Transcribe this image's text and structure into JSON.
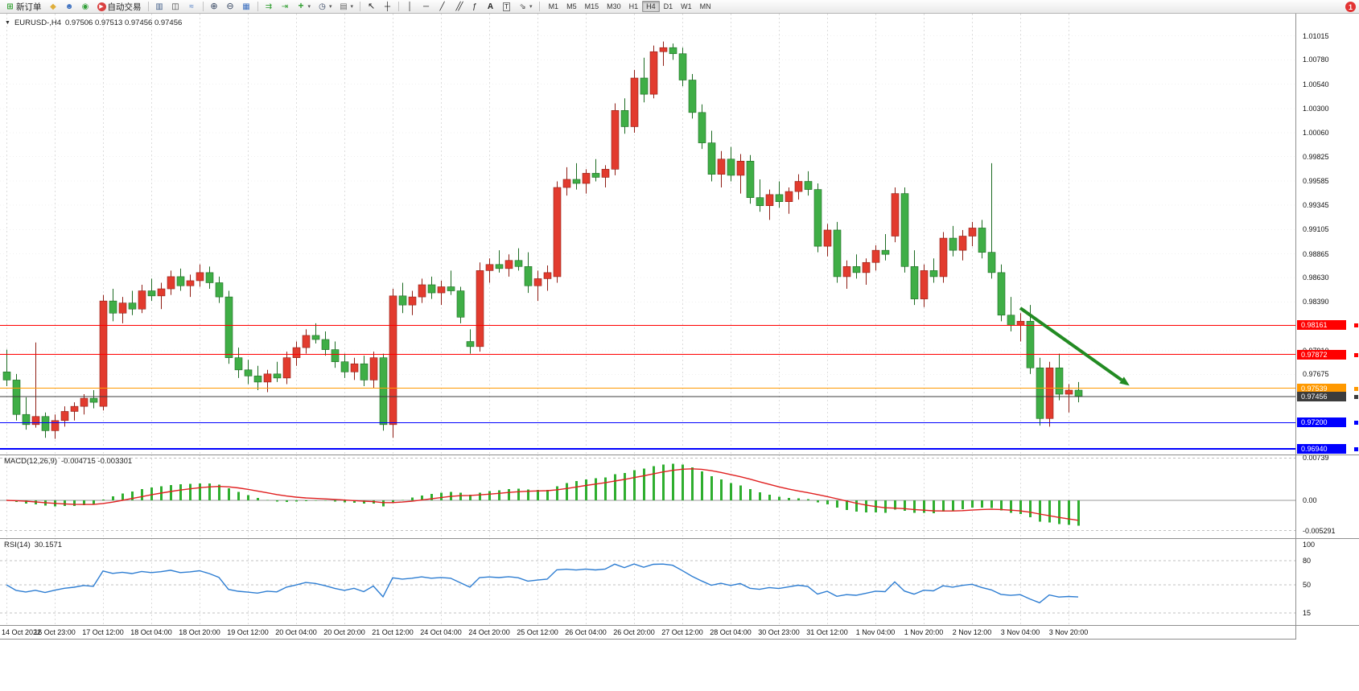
{
  "toolbar": {
    "new_order_label": "新订单",
    "autotrade_label": "自动交易",
    "timeframes": [
      "M1",
      "M5",
      "M15",
      "M30",
      "H1",
      "H4",
      "D1",
      "W1",
      "MN"
    ],
    "active_timeframe": "H4"
  },
  "badge": {
    "count": "1"
  },
  "chart": {
    "marker": "▼",
    "symbol_label": "EURUSD-,H4",
    "ohlc": "0.97506 0.97513 0.97456 0.97456"
  },
  "price_axis": {
    "ticks": [
      "1.01015",
      "1.00780",
      "1.00540",
      "1.00300",
      "1.00060",
      "0.99825",
      "0.99585",
      "0.99345",
      "0.99105",
      "0.98865",
      "0.98630",
      "0.98390",
      "0.97910",
      "0.97675"
    ],
    "tags": [
      {
        "label": "0.98161",
        "price": 0.98161,
        "color": "#ff0000"
      },
      {
        "label": "0.97872",
        "price": 0.97872,
        "color": "#ff0000"
      },
      {
        "label": "0.97539",
        "price": 0.97539,
        "color": "#ff9900"
      },
      {
        "label": "0.97456",
        "price": 0.97456,
        "color": "#3c3c3c"
      },
      {
        "label": "0.97200",
        "price": 0.972,
        "color": "#0000ff"
      },
      {
        "label": "0.96940",
        "price": 0.9694,
        "color": "#0000ff"
      }
    ]
  },
  "time_axis": {
    "labels": [
      "14 Oct 2022",
      "16 Oct 23:00",
      "17 Oct 12:00",
      "18 Oct 04:00",
      "18 Oct 20:00",
      "19 Oct 12:00",
      "20 Oct 04:00",
      "20 Oct 20:00",
      "21 Oct 12:00",
      "24 Oct 04:00",
      "24 Oct 20:00",
      "25 Oct 12:00",
      "26 Oct 04:00",
      "26 Oct 20:00",
      "27 Oct 12:00",
      "28 Oct 04:00",
      "30 Oct 23:00",
      "31 Oct 12:00",
      "1 Nov 04:00",
      "1 Nov 20:00",
      "2 Nov 12:00",
      "3 Nov 04:00",
      "3 Nov 20:00"
    ]
  },
  "macd": {
    "title": "MACD(12,26,9)",
    "values": "-0.004715 -0.003301",
    "axis": [
      "0.00739",
      "0.00",
      "-0.005291"
    ]
  },
  "rsi": {
    "title": "RSI(14)",
    "value": "30.1571",
    "axis": [
      "100",
      "80",
      "50",
      "15"
    ],
    "levels": [
      80,
      50,
      15
    ]
  },
  "chart_data": {
    "type": "candlestick",
    "symbol": "EURUSD-",
    "timeframe": "H4",
    "up_color": "#e23b2e",
    "up_border": "#8f1d14",
    "down_color": "#3fae46",
    "down_border": "#1c6b22",
    "candles": [
      [
        0.977,
        0.9792,
        0.9756,
        0.9762
      ],
      [
        0.9762,
        0.9768,
        0.9722,
        0.9728
      ],
      [
        0.9728,
        0.9745,
        0.9713,
        0.9718
      ],
      [
        0.9718,
        0.9799,
        0.9715,
        0.9726
      ],
      [
        0.9726,
        0.973,
        0.9705,
        0.9712
      ],
      [
        0.9712,
        0.9728,
        0.9704,
        0.9722
      ],
      [
        0.9722,
        0.9736,
        0.9716,
        0.9731
      ],
      [
        0.9731,
        0.974,
        0.9722,
        0.9736
      ],
      [
        0.9736,
        0.9748,
        0.9728,
        0.9744
      ],
      [
        0.9744,
        0.9752,
        0.9734,
        0.974
      ],
      [
        0.9736,
        0.9846,
        0.9732,
        0.984
      ],
      [
        0.984,
        0.9852,
        0.982,
        0.9828
      ],
      [
        0.9828,
        0.9844,
        0.9818,
        0.9838
      ],
      [
        0.9838,
        0.985,
        0.9826,
        0.9832
      ],
      [
        0.9832,
        0.9856,
        0.9828,
        0.985
      ],
      [
        0.985,
        0.9862,
        0.984,
        0.9845
      ],
      [
        0.9845,
        0.9858,
        0.9832,
        0.9852
      ],
      [
        0.9852,
        0.987,
        0.9846,
        0.9864
      ],
      [
        0.9864,
        0.9872,
        0.985,
        0.9855
      ],
      [
        0.9855,
        0.9866,
        0.9844,
        0.986
      ],
      [
        0.986,
        0.9876,
        0.9854,
        0.9868
      ],
      [
        0.9868,
        0.9874,
        0.9852,
        0.9858
      ],
      [
        0.9858,
        0.9864,
        0.9838,
        0.9844
      ],
      [
        0.9844,
        0.985,
        0.9778,
        0.9784
      ],
      [
        0.9784,
        0.9794,
        0.9764,
        0.9772
      ],
      [
        0.9772,
        0.9782,
        0.9758,
        0.9766
      ],
      [
        0.9766,
        0.9776,
        0.9752,
        0.976
      ],
      [
        0.976,
        0.9772,
        0.975,
        0.9768
      ],
      [
        0.9768,
        0.978,
        0.976,
        0.9764
      ],
      [
        0.9764,
        0.979,
        0.9758,
        0.9784
      ],
      [
        0.9784,
        0.98,
        0.9776,
        0.9794
      ],
      [
        0.9794,
        0.9812,
        0.9788,
        0.9806
      ],
      [
        0.9806,
        0.9818,
        0.9798,
        0.9802
      ],
      [
        0.9802,
        0.981,
        0.9786,
        0.9792
      ],
      [
        0.9792,
        0.98,
        0.9774,
        0.978
      ],
      [
        0.978,
        0.9788,
        0.9764,
        0.977
      ],
      [
        0.977,
        0.9784,
        0.9762,
        0.9778
      ],
      [
        0.9778,
        0.9786,
        0.9756,
        0.9762
      ],
      [
        0.9762,
        0.979,
        0.9754,
        0.9784
      ],
      [
        0.9784,
        0.9788,
        0.9712,
        0.9718
      ],
      [
        0.9718,
        0.9852,
        0.9705,
        0.9845
      ],
      [
        0.9845,
        0.9858,
        0.9828,
        0.9836
      ],
      [
        0.9836,
        0.985,
        0.9826,
        0.9844
      ],
      [
        0.9844,
        0.9862,
        0.9838,
        0.9856
      ],
      [
        0.9856,
        0.9864,
        0.9842,
        0.9848
      ],
      [
        0.9848,
        0.986,
        0.9836,
        0.9854
      ],
      [
        0.9854,
        0.987,
        0.9846,
        0.985
      ],
      [
        0.985,
        0.9854,
        0.9818,
        0.9824
      ],
      [
        0.98,
        0.9812,
        0.9788,
        0.9795
      ],
      [
        0.9795,
        0.9878,
        0.979,
        0.987
      ],
      [
        0.987,
        0.9882,
        0.9858,
        0.9876
      ],
      [
        0.9876,
        0.989,
        0.9868,
        0.9872
      ],
      [
        0.9872,
        0.9886,
        0.9864,
        0.988
      ],
      [
        0.988,
        0.9892,
        0.987,
        0.9874
      ],
      [
        0.9874,
        0.9888,
        0.9848,
        0.9855
      ],
      [
        0.9855,
        0.987,
        0.984,
        0.9862
      ],
      [
        0.9862,
        0.9875,
        0.985,
        0.9868
      ],
      [
        0.9864,
        0.9958,
        0.9858,
        0.9952
      ],
      [
        0.9952,
        0.9972,
        0.9944,
        0.996
      ],
      [
        0.996,
        0.9976,
        0.995,
        0.9956
      ],
      [
        0.9956,
        0.997,
        0.9946,
        0.9966
      ],
      [
        0.9966,
        0.998,
        0.9958,
        0.9962
      ],
      [
        0.9962,
        0.9974,
        0.9952,
        0.997
      ],
      [
        0.997,
        1.0035,
        0.9964,
        1.0028
      ],
      [
        1.0028,
        1.004,
        1.0005,
        1.0012
      ],
      [
        1.0012,
        1.0068,
        1.0006,
        1.006
      ],
      [
        1.006,
        1.008,
        1.0036,
        1.0044
      ],
      [
        1.0044,
        1.0092,
        1.004,
        1.0086
      ],
      [
        1.0086,
        1.0096,
        1.0072,
        1.009
      ],
      [
        1.009,
        1.0094,
        1.0078,
        1.0084
      ],
      [
        1.0084,
        1.009,
        1.0052,
        1.0058
      ],
      [
        1.0058,
        1.0064,
        1.002,
        1.0026
      ],
      [
        1.0026,
        1.0034,
        0.999,
        0.9996
      ],
      [
        0.9996,
        1.0008,
        0.9958,
        0.9965
      ],
      [
        0.9965,
        0.9988,
        0.9952,
        0.998
      ],
      [
        0.998,
        0.9992,
        0.9958,
        0.9964
      ],
      [
        0.9964,
        0.9985,
        0.9946,
        0.9978
      ],
      [
        0.9978,
        0.9984,
        0.9936,
        0.9942
      ],
      [
        0.9942,
        0.996,
        0.9928,
        0.9934
      ],
      [
        0.9934,
        0.995,
        0.992,
        0.9945
      ],
      [
        0.9945,
        0.9958,
        0.9932,
        0.9938
      ],
      [
        0.9938,
        0.9952,
        0.9926,
        0.9948
      ],
      [
        0.9948,
        0.9965,
        0.994,
        0.9958
      ],
      [
        0.9958,
        0.9968,
        0.9944,
        0.995
      ],
      [
        0.995,
        0.9956,
        0.9888,
        0.9894
      ],
      [
        0.9894,
        0.9916,
        0.9884,
        0.991
      ],
      [
        0.991,
        0.9918,
        0.9858,
        0.9864
      ],
      [
        0.9864,
        0.988,
        0.9852,
        0.9874
      ],
      [
        0.9874,
        0.9886,
        0.9862,
        0.9868
      ],
      [
        0.9868,
        0.9882,
        0.9856,
        0.9878
      ],
      [
        0.9878,
        0.9895,
        0.987,
        0.989
      ],
      [
        0.989,
        0.9906,
        0.988,
        0.9886
      ],
      [
        0.9904,
        0.9952,
        0.9898,
        0.9946
      ],
      [
        0.9946,
        0.9952,
        0.9868,
        0.9874
      ],
      [
        0.9874,
        0.989,
        0.9836,
        0.9842
      ],
      [
        0.9842,
        0.9876,
        0.9834,
        0.987
      ],
      [
        0.987,
        0.9882,
        0.9858,
        0.9864
      ],
      [
        0.9864,
        0.9908,
        0.9858,
        0.9902
      ],
      [
        0.9902,
        0.9914,
        0.9884,
        0.989
      ],
      [
        0.989,
        0.991,
        0.988,
        0.9904
      ],
      [
        0.9904,
        0.9918,
        0.9894,
        0.9912
      ],
      [
        0.9912,
        0.992,
        0.9882,
        0.9888
      ],
      [
        0.9888,
        0.9976,
        0.9862,
        0.9868
      ],
      [
        0.9868,
        0.9876,
        0.982,
        0.9826
      ],
      [
        0.9826,
        0.9844,
        0.981,
        0.9816
      ],
      [
        0.9816,
        0.9828,
        0.98,
        0.982
      ],
      [
        0.982,
        0.9836,
        0.9768,
        0.9774
      ],
      [
        0.9774,
        0.9784,
        0.9717,
        0.9724
      ],
      [
        0.9724,
        0.978,
        0.9716,
        0.9774
      ],
      [
        0.9774,
        0.9788,
        0.9742,
        0.9748
      ],
      [
        0.9748,
        0.9758,
        0.973,
        0.9752
      ],
      [
        0.9752,
        0.976,
        0.974,
        0.9746
      ]
    ],
    "lines": [
      {
        "price": 0.98161,
        "color": "#ff0000",
        "width": 1
      },
      {
        "price": 0.97872,
        "color": "#ff0000",
        "width": 1
      },
      {
        "price": 0.97539,
        "color": "#ff9900",
        "width": 1
      },
      {
        "price": 0.97456,
        "color": "#3c3c3c",
        "width": 1
      },
      {
        "price": 0.972,
        "color": "#0000ff",
        "width": 1
      },
      {
        "price": 0.9694,
        "color": "#0000ff",
        "width": 2
      }
    ],
    "arrow": {
      "color": "#228b22",
      "from": {
        "index": 105,
        "price": 0.9833
      },
      "to": {
        "index": 115.5,
        "price": 0.9762
      }
    },
    "macd": {
      "fast": 12,
      "slow": 26,
      "signal": 9,
      "histogram_color": "#2fae2f",
      "signal_color": "#e02020",
      "current_macd": -0.004715,
      "current_signal": -0.003301
    },
    "rsi": {
      "period": 14,
      "color": "#2d7dd2",
      "current": 30.1571
    }
  }
}
